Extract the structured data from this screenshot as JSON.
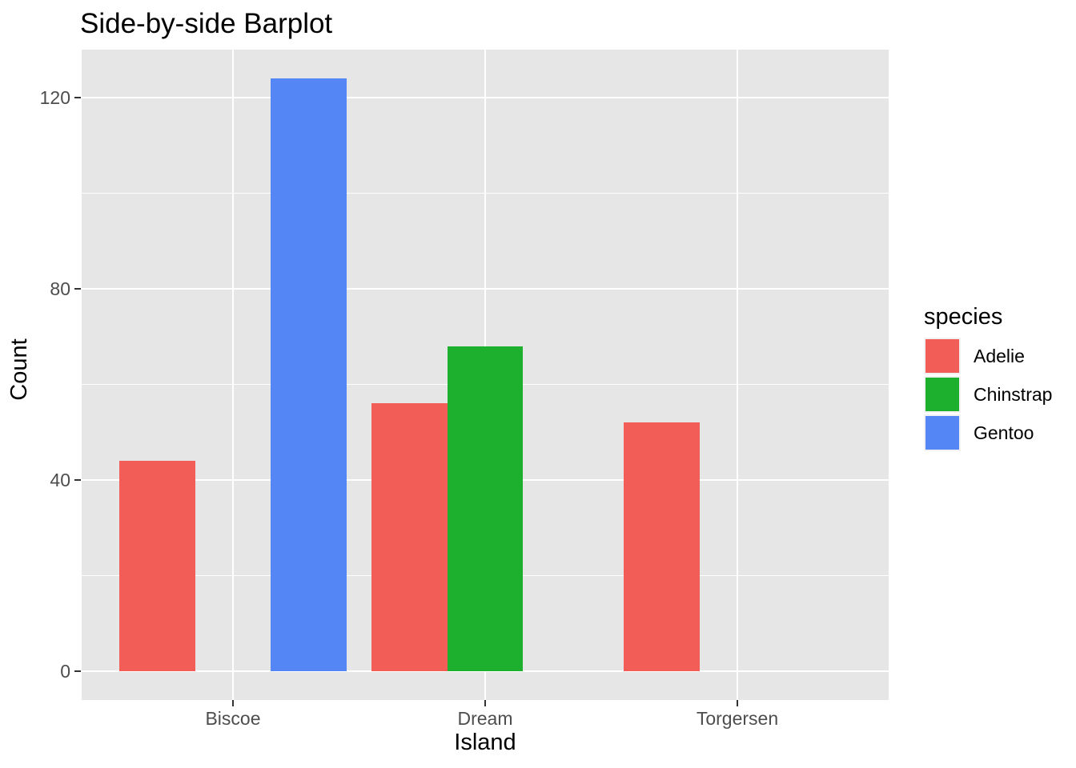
{
  "title": "Side-by-side Barplot",
  "chart_data": {
    "type": "bar",
    "mode": "grouped-dodge",
    "title": "Side-by-side Barplot",
    "xlabel": "Island",
    "ylabel": "Count",
    "categories": [
      "Biscoe",
      "Dream",
      "Torgersen"
    ],
    "series": [
      {
        "name": "Adelie",
        "color": "#F25D58",
        "values": [
          44,
          56,
          52
        ]
      },
      {
        "name": "Chinstrap",
        "color": "#1DB02E",
        "values": [
          0,
          68,
          0
        ]
      },
      {
        "name": "Gentoo",
        "color": "#5487F5",
        "values": [
          124,
          0,
          0
        ]
      }
    ],
    "y_major_ticks": [
      0,
      40,
      80,
      120
    ],
    "y_minor_ticks": [
      20,
      60,
      100
    ],
    "ylim": [
      -6.2,
      130.2
    ],
    "grid": "on",
    "legend_position": "right",
    "legend_title": "species",
    "panel_background": "#E6E6E6",
    "grid_color": "#FFFFFF",
    "tick_label_color": "#4D4D4D",
    "tick_mark_color": "#333333"
  },
  "legend": {
    "title": "species",
    "entries": [
      {
        "label": "Adelie",
        "color": "#F25D58"
      },
      {
        "label": "Chinstrap",
        "color": "#1DB02E"
      },
      {
        "label": "Gentoo",
        "color": "#5487F5"
      }
    ]
  }
}
